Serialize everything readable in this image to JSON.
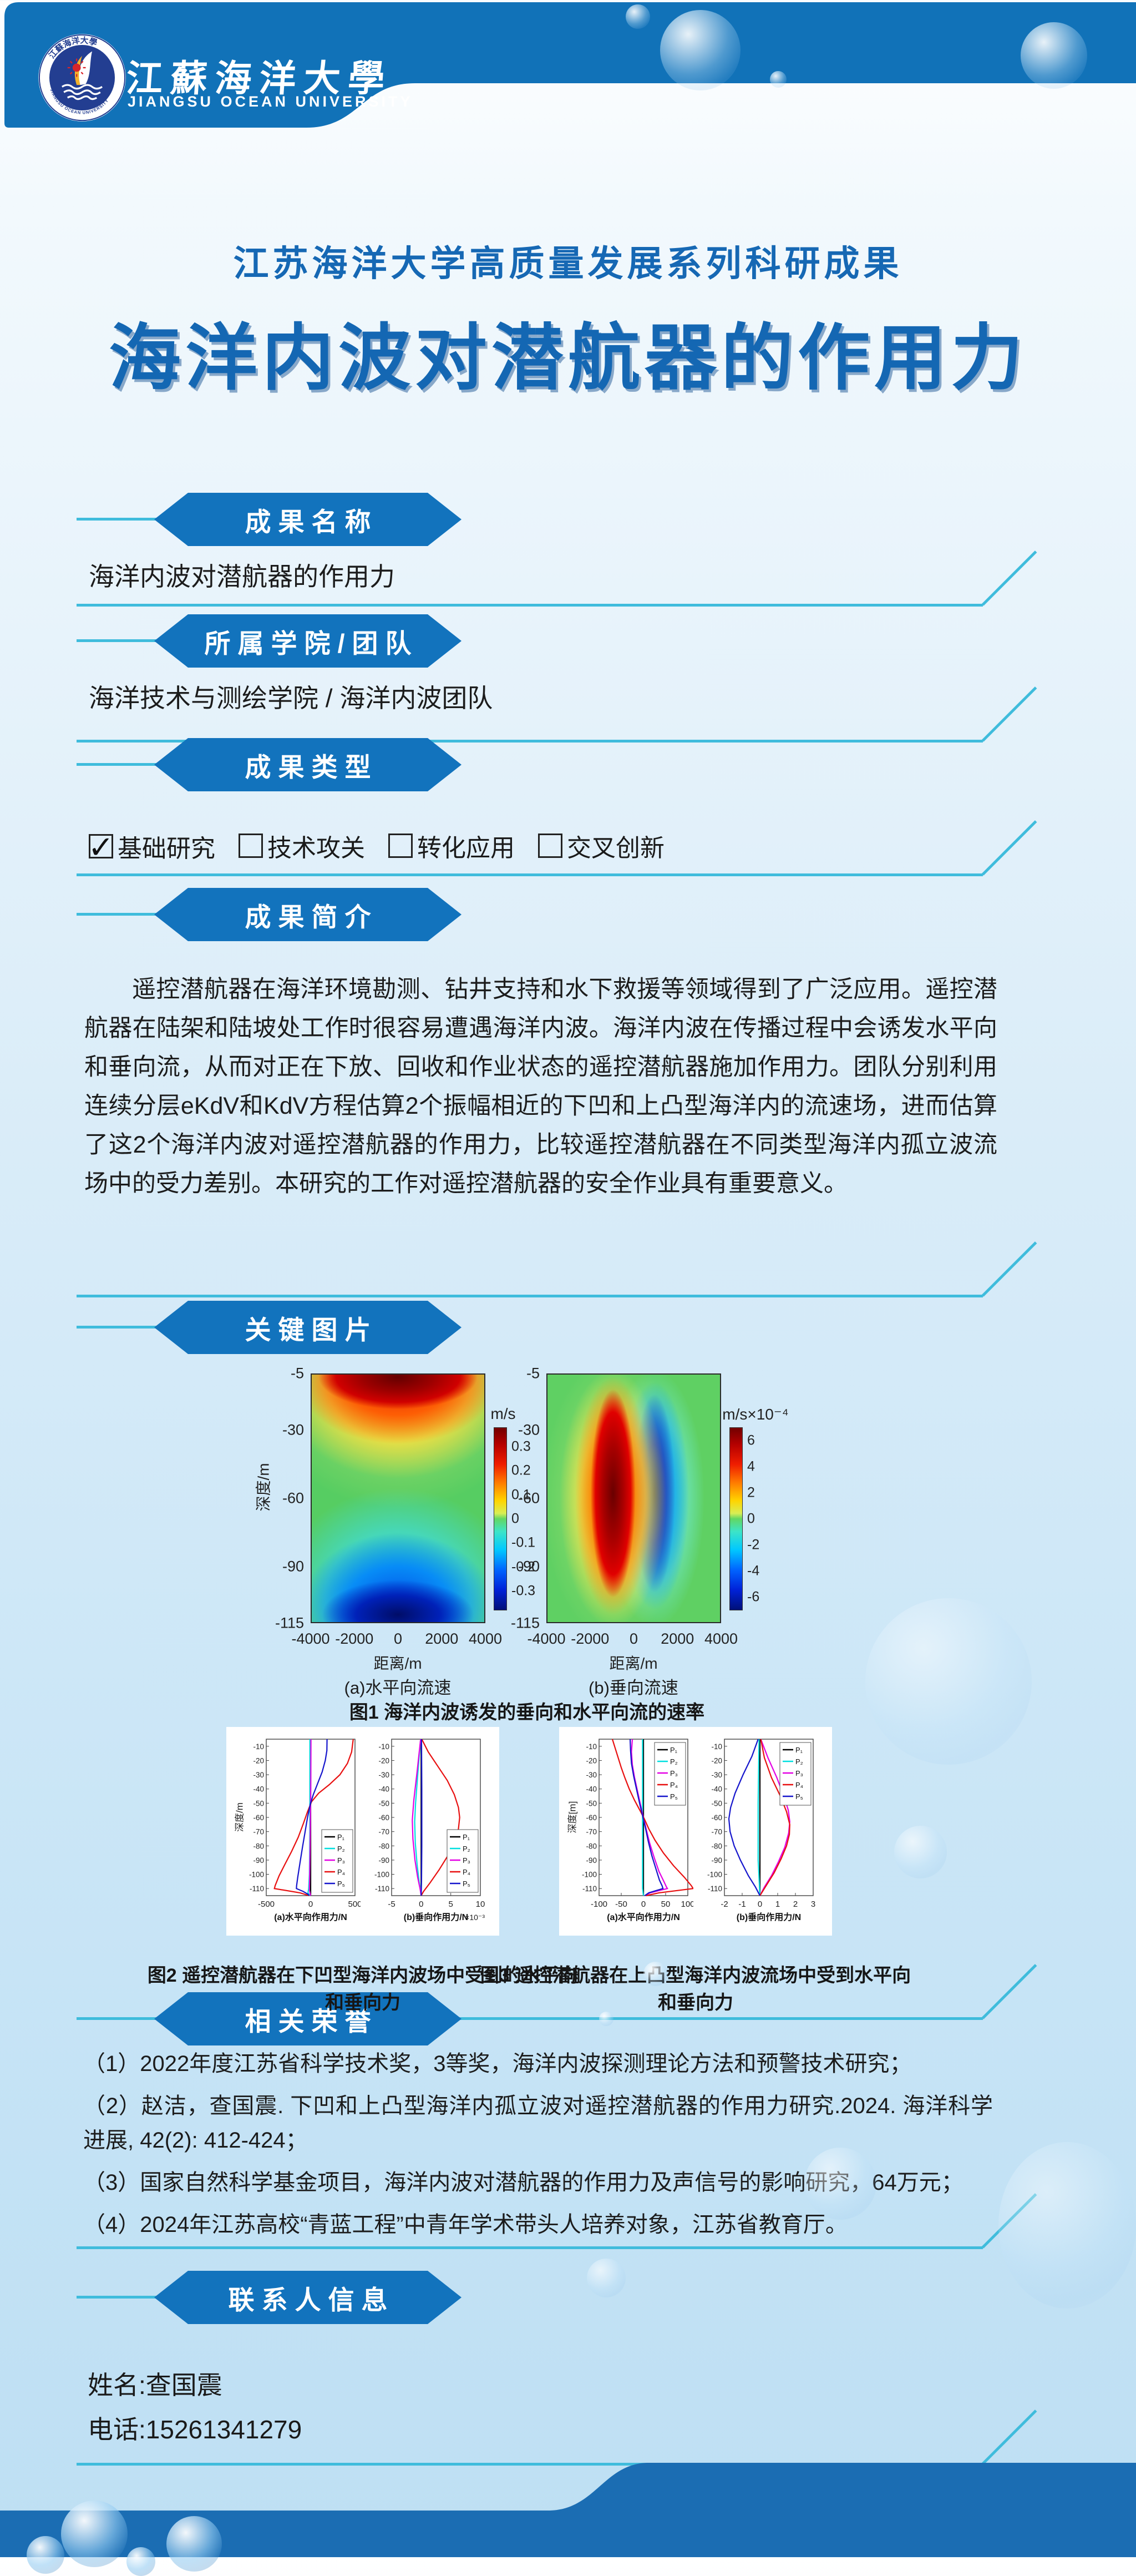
{
  "header": {
    "university_cn": "江蘇海洋大學",
    "university_en": "JIANGSU OCEAN UNIVERSITY",
    "logo": "jiangsu-ocean-university-seal"
  },
  "titles": {
    "series": "江苏海洋大学高质量发展系列科研成果",
    "main": "海洋内波对潜航器的作用力"
  },
  "sections": {
    "name": {
      "badge": "成果名称",
      "content": "海洋内波对潜航器的作用力"
    },
    "team": {
      "badge": "所属学院/团队",
      "content": "海洋技术与测绘学院 / 海洋内波团队"
    },
    "type": {
      "badge": "成果类型",
      "check_mark": "✓",
      "options": [
        {
          "label": "基础研究",
          "checked": true
        },
        {
          "label": "技术攻关",
          "checked": false
        },
        {
          "label": "转化应用",
          "checked": false
        },
        {
          "label": "交叉创新",
          "checked": false
        }
      ]
    },
    "intro": {
      "badge": "成果简介",
      "paragraph": "遥控潜航器在海洋环境勘测、钻井支持和水下救援等领域得到了广泛应用。遥控潜航器在陆架和陆坡处工作时很容易遭遇海洋内波。海洋内波在传播过程中会诱发水平向和垂向流，从而对正在下放、回收和作业状态的遥控潜航器施加作用力。团队分别利用连续分层eKdV和KdV方程估算2个振幅相近的下凹和上凸型海洋内的流速场，进而估算了这2个海洋内波对遥控潜航器的作用力，比较遥控潜航器在不同类型海洋内孤立波流场中的受力差别。本研究的工作对遥控潜航器的安全作业具有重要意义。"
    },
    "images": {
      "badge": "关键图片",
      "fig1_caption": "图1 海洋内波诱发的垂向和水平向流的速率",
      "fig2_caption": "图2 遥控潜航器在下凹型海洋内波场中受到的水平向和垂向力",
      "fig3_caption": "图3 遥控潜航器在上凸型海洋内波流场中受到水平向和垂向力"
    },
    "honors": {
      "badge": "相关荣誉",
      "items": [
        "（1）2022年度江苏省科学技术奖，3等奖，海洋内波探测理论方法和预警技术研究；",
        "（2）赵洁，查国震. 下凹和上凸型海洋内孤立波对遥控潜航器的作用力研究.2024. 海洋科学进展, 42(2): 412-424；",
        "（3）国家自然科学基金项目，海洋内波对潜航器的作用力及声信号的影响研究，64万元；",
        "（4）2024年江苏高校“青蓝工程”中青年学术带头人培养对象，江苏省教育厅。"
      ]
    },
    "contact": {
      "badge": "联系人信息",
      "name_line": "姓名:查国震",
      "phone_line": "电话:15261341279"
    }
  },
  "colors": {
    "primary_blue": "#1172b8",
    "badge_blue": "#1273bd",
    "cyan_line": "#3fbcdc",
    "title_blue": "#1467b3",
    "footer_blue": "#1b6db3"
  },
  "chart_data": [
    {
      "id": "fig1a",
      "type": "heatmap",
      "title": "(a)水平向流速",
      "xlabel": "距离/m",
      "ylabel": "深度/m",
      "unit": "m/s",
      "xlim": [
        -4000,
        4000
      ],
      "ylim": [
        -5,
        -115
      ],
      "xticks": [
        -4000,
        -2000,
        0,
        2000,
        4000
      ],
      "yticks": [
        -5,
        -30,
        -60,
        -90,
        -115
      ],
      "clim": [
        0.38,
        -0.38
      ],
      "cticks": [
        0.3,
        0.2,
        0.1,
        0,
        -0.1,
        -0.2,
        -0.3
      ],
      "description": "下凹型内孤立波水平向流速：上层(-5~-45m)波谷中心为正流速(红,峰值约+0.35m/s)，下层(-60~-115m)为负流速(蓝,约-0.35m/s)，背景约0(绿)"
    },
    {
      "id": "fig1b",
      "type": "heatmap",
      "title": "(b)垂向流速",
      "xlabel": "距离/m",
      "unit": "m/s×10⁻⁴",
      "xlim": [
        -4000,
        4000
      ],
      "ylim": [
        -5,
        -115
      ],
      "xticks": [
        -4000,
        -2000,
        0,
        2000,
        4000
      ],
      "yticks": [
        -5,
        -30,
        -60,
        -90,
        -115
      ],
      "clim": [
        7,
        -7
      ],
      "cticks": [
        6,
        4,
        2,
        0,
        -2,
        -4,
        -6
      ],
      "description": "垂向流速：波前(约-2000~0m)整个水深为正垂向流(红,峰值约+6×10⁻⁴m/s)，波后(0~2000m)为负垂向流(蓝)"
    },
    {
      "id": "fig2a",
      "type": "line",
      "legend_pos": "br",
      "xlabel": "(a)水平向作用力/N",
      "ylabel": "深度/m",
      "xlim": [
        -500,
        500
      ],
      "ylim": [
        -5,
        -115
      ],
      "xticks": [
        -500,
        0,
        500
      ],
      "yticks": [
        -10,
        -20,
        -30,
        -40,
        -50,
        -60,
        -70,
        -80,
        -90,
        -100,
        -110
      ],
      "series": [
        {
          "name": "P₁",
          "color": "#000000",
          "points": [
            [
              0,
              -5
            ],
            [
              0,
              -115
            ]
          ]
        },
        {
          "name": "P₂",
          "color": "#00dfdf",
          "points": [
            [
              -8,
              -5
            ],
            [
              -9,
              -70
            ],
            [
              -14,
              -100
            ],
            [
              -22,
              -110
            ],
            [
              -30,
              -113
            ],
            [
              -8,
              -115
            ]
          ]
        },
        {
          "name": "P₃",
          "color": "#e400e4",
          "points": [
            [
              4,
              -5
            ],
            [
              2,
              -35
            ],
            [
              -2,
              -60
            ],
            [
              -7,
              -85
            ],
            [
              -12,
              -105
            ],
            [
              -14,
              -111
            ],
            [
              0,
              -115
            ]
          ]
        },
        {
          "name": "P₄",
          "color": "#e81010",
          "points": [
            [
              480,
              -5
            ],
            [
              462,
              -14
            ],
            [
              415,
              -22
            ],
            [
              330,
              -30
            ],
            [
              210,
              -37
            ],
            [
              90,
              -43
            ],
            [
              10,
              -49
            ],
            [
              -35,
              -56
            ],
            [
              -80,
              -64
            ],
            [
              -140,
              -74
            ],
            [
              -215,
              -84
            ],
            [
              -290,
              -93
            ],
            [
              -355,
              -101
            ],
            [
              -400,
              -108
            ],
            [
              -408,
              -110
            ],
            [
              -120,
              -113
            ],
            [
              -15,
              -115
            ]
          ]
        },
        {
          "name": "P₅",
          "color": "#1515cc",
          "points": [
            [
              185,
              -5
            ],
            [
              183,
              -13
            ],
            [
              165,
              -20
            ],
            [
              130,
              -28
            ],
            [
              80,
              -36
            ],
            [
              30,
              -44
            ],
            [
              -5,
              -51
            ],
            [
              -35,
              -60
            ],
            [
              -62,
              -70
            ],
            [
              -92,
              -81
            ],
            [
              -120,
              -92
            ],
            [
              -145,
              -102
            ],
            [
              -158,
              -108
            ],
            [
              -160,
              -110
            ],
            [
              -85,
              -112
            ],
            [
              -30,
              -114
            ],
            [
              -18,
              -115
            ]
          ]
        }
      ]
    },
    {
      "id": "fig2b",
      "type": "line",
      "legend_pos": "br",
      "scale_note": "×10⁻³",
      "xlabel": "(b)垂向作用力/N",
      "xlim": [
        -5,
        10
      ],
      "ylim": [
        -5,
        -115
      ],
      "xticks": [
        -5,
        0,
        5,
        10
      ],
      "yticks": [
        -10,
        -20,
        -30,
        -40,
        -50,
        -60,
        -70,
        -80,
        -90,
        -100,
        -110
      ],
      "series": [
        {
          "name": "P₁",
          "color": "#000000",
          "points": [
            [
              0,
              -5
            ],
            [
              0,
              -115
            ]
          ]
        },
        {
          "name": "P₂",
          "color": "#00dfdf",
          "points": [
            [
              -0.1,
              -5
            ],
            [
              -0.55,
              -28
            ],
            [
              -0.95,
              -50
            ],
            [
              -1.1,
              -63
            ],
            [
              -1.0,
              -78
            ],
            [
              -0.7,
              -93
            ],
            [
              -0.35,
              -105
            ],
            [
              -0.1,
              -112
            ],
            [
              0,
              -115
            ]
          ]
        },
        {
          "name": "P₃",
          "color": "#e400e4",
          "points": [
            [
              -0.1,
              -5
            ],
            [
              -0.7,
              -28
            ],
            [
              -1.25,
              -48
            ],
            [
              -1.5,
              -62
            ],
            [
              -1.4,
              -75
            ],
            [
              -1.05,
              -90
            ],
            [
              -0.6,
              -102
            ],
            [
              -0.2,
              -110
            ],
            [
              0,
              -115
            ]
          ]
        },
        {
          "name": "P₄",
          "color": "#e81010",
          "points": [
            [
              0.1,
              -5
            ],
            [
              1.2,
              -14
            ],
            [
              2.8,
              -24
            ],
            [
              4.4,
              -34
            ],
            [
              5.6,
              -44
            ],
            [
              6.3,
              -53
            ],
            [
              6.5,
              -60
            ],
            [
              6.3,
              -68
            ],
            [
              5.6,
              -77
            ],
            [
              4.5,
              -87
            ],
            [
              3.0,
              -97
            ],
            [
              1.5,
              -106
            ],
            [
              0.4,
              -112
            ],
            [
              0,
              -115
            ]
          ]
        },
        {
          "name": "P₅",
          "color": "#1515cc",
          "points": [
            [
              0.05,
              -5
            ],
            [
              0.1,
              -40
            ],
            [
              0.1,
              -80
            ],
            [
              0.05,
              -105
            ],
            [
              0,
              -115
            ]
          ]
        }
      ]
    },
    {
      "id": "fig3a",
      "type": "line",
      "legend_pos": "tr",
      "xlabel": "(a)水平向作用力/N",
      "ylabel": "深度[m]",
      "xlim": [
        -100,
        100
      ],
      "ylim": [
        -5,
        -115
      ],
      "xticks": [
        -100,
        -50,
        0,
        50,
        100
      ],
      "yticks": [
        -10,
        -20,
        -30,
        -40,
        -50,
        -60,
        -70,
        -80,
        -90,
        -100,
        -110
      ],
      "series": [
        {
          "name": "P₁",
          "color": "#000000",
          "points": [
            [
              0,
              -5
            ],
            [
              0,
              -115
            ]
          ]
        },
        {
          "name": "P₂",
          "color": "#00dfdf",
          "points": [
            [
              -2,
              -5
            ],
            [
              -2,
              -110
            ],
            [
              0,
              -115
            ]
          ]
        },
        {
          "name": "P₃",
          "color": "#e400e4",
          "points": [
            [
              -25,
              -5
            ],
            [
              -27,
              -14
            ],
            [
              -25,
              -23
            ],
            [
              -20,
              -32
            ],
            [
              -13,
              -42
            ],
            [
              -6,
              -52
            ],
            [
              0,
              -60
            ],
            [
              6,
              -68
            ],
            [
              14,
              -78
            ],
            [
              24,
              -88
            ],
            [
              35,
              -98
            ],
            [
              46,
              -105
            ],
            [
              52,
              -109
            ],
            [
              54,
              -110
            ],
            [
              15,
              -113
            ],
            [
              3,
              -115
            ]
          ]
        },
        {
          "name": "P₄",
          "color": "#e81010",
          "points": [
            [
              -70,
              -5
            ],
            [
              -64,
              -11
            ],
            [
              -57,
              -18
            ],
            [
              -50,
              -25
            ],
            [
              -42,
              -32
            ],
            [
              -32,
              -40
            ],
            [
              -20,
              -48
            ],
            [
              -8,
              -55
            ],
            [
              2,
              -61
            ],
            [
              12,
              -68
            ],
            [
              26,
              -76
            ],
            [
              45,
              -85
            ],
            [
              68,
              -94
            ],
            [
              92,
              -102
            ],
            [
              108,
              -108
            ],
            [
              112,
              -110
            ],
            [
              35,
              -113
            ],
            [
              6,
              -115
            ]
          ]
        },
        {
          "name": "P₅",
          "color": "#1515cc",
          "points": [
            [
              -30,
              -5
            ],
            [
              -29,
              -13
            ],
            [
              -27,
              -22
            ],
            [
              -22,
              -31
            ],
            [
              -15,
              -41
            ],
            [
              -8,
              -51
            ],
            [
              -1,
              -60
            ],
            [
              5,
              -68
            ],
            [
              11,
              -77
            ],
            [
              19,
              -87
            ],
            [
              28,
              -96
            ],
            [
              36,
              -104
            ],
            [
              42,
              -108
            ],
            [
              44,
              -110
            ],
            [
              12,
              -113
            ],
            [
              3,
              -115
            ]
          ]
        }
      ]
    },
    {
      "id": "fig3b",
      "type": "line",
      "legend_pos": "tr",
      "xlabel": "(b)垂向作用力/N",
      "xlim": [
        -2,
        3
      ],
      "ylim": [
        -5,
        -115
      ],
      "xticks": [
        -2,
        -1,
        0,
        1,
        2,
        3
      ],
      "yticks": [
        -10,
        -20,
        -30,
        -40,
        -50,
        -60,
        -70,
        -80,
        -90,
        -100,
        -110
      ],
      "series": [
        {
          "name": "P₁",
          "color": "#000000",
          "points": [
            [
              0,
              -5
            ],
            [
              0,
              -115
            ]
          ]
        },
        {
          "name": "P₂",
          "color": "#00dfdf",
          "points": [
            [
              -0.05,
              -5
            ],
            [
              -0.1,
              -50
            ],
            [
              -0.1,
              -90
            ],
            [
              0,
              -115
            ]
          ]
        },
        {
          "name": "P₃",
          "color": "#e400e4",
          "points": [
            [
              0.05,
              -5
            ],
            [
              0.45,
              -18
            ],
            [
              0.95,
              -32
            ],
            [
              1.35,
              -45
            ],
            [
              1.6,
              -55
            ],
            [
              1.68,
              -63
            ],
            [
              1.62,
              -71
            ],
            [
              1.4,
              -81
            ],
            [
              1.05,
              -91
            ],
            [
              0.65,
              -101
            ],
            [
              0.25,
              -109
            ],
            [
              0,
              -115
            ]
          ]
        },
        {
          "name": "P₄",
          "color": "#e81010",
          "points": [
            [
              0.05,
              -5
            ],
            [
              0.25,
              -18
            ],
            [
              0.65,
              -32
            ],
            [
              1.15,
              -45
            ],
            [
              1.5,
              -56
            ],
            [
              1.68,
              -65
            ],
            [
              1.66,
              -72
            ],
            [
              1.5,
              -80
            ],
            [
              1.2,
              -89
            ],
            [
              0.8,
              -99
            ],
            [
              0.35,
              -108
            ],
            [
              0,
              -115
            ]
          ]
        },
        {
          "name": "P₅",
          "color": "#1515cc",
          "points": [
            [
              -0.1,
              -5
            ],
            [
              -0.45,
              -17
            ],
            [
              -0.95,
              -30
            ],
            [
              -1.4,
              -43
            ],
            [
              -1.65,
              -53
            ],
            [
              -1.75,
              -61
            ],
            [
              -1.68,
              -70
            ],
            [
              -1.45,
              -80
            ],
            [
              -1.1,
              -90
            ],
            [
              -0.65,
              -101
            ],
            [
              -0.25,
              -109
            ],
            [
              0,
              -115
            ]
          ]
        }
      ]
    }
  ]
}
